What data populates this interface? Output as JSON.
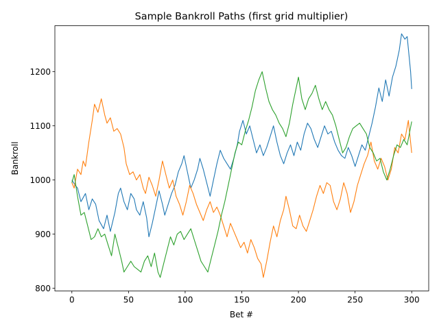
{
  "chart_data": {
    "type": "line",
    "title": "Sample Bankroll Paths (first grid multiplier)",
    "xlabel": "Bet #",
    "ylabel": "Bankroll",
    "xlim": [
      -15,
      315
    ],
    "ylim": [
      795,
      1285
    ],
    "xticks": [
      0,
      50,
      100,
      150,
      200,
      250,
      300
    ],
    "yticks": [
      800,
      900,
      1000,
      1100,
      1200
    ],
    "grid": false,
    "series": [
      {
        "color": "#1f77b4",
        "points": [
          [
            0,
            1000
          ],
          [
            3,
            990
          ],
          [
            5,
            985
          ],
          [
            8,
            960
          ],
          [
            12,
            975
          ],
          [
            15,
            945
          ],
          [
            18,
            965
          ],
          [
            21,
            955
          ],
          [
            24,
            925
          ],
          [
            28,
            910
          ],
          [
            31,
            935
          ],
          [
            34,
            905
          ],
          [
            38,
            940
          ],
          [
            41,
            975
          ],
          [
            43,
            985
          ],
          [
            46,
            960
          ],
          [
            49,
            945
          ],
          [
            52,
            975
          ],
          [
            55,
            965
          ],
          [
            57,
            945
          ],
          [
            60,
            935
          ],
          [
            63,
            960
          ],
          [
            66,
            930
          ],
          [
            68,
            895
          ],
          [
            71,
            920
          ],
          [
            74,
            950
          ],
          [
            77,
            980
          ],
          [
            80,
            955
          ],
          [
            82,
            935
          ],
          [
            85,
            955
          ],
          [
            88,
            975
          ],
          [
            91,
            990
          ],
          [
            94,
            1015
          ],
          [
            97,
            1030
          ],
          [
            99,
            1045
          ],
          [
            102,
            1015
          ],
          [
            105,
            985
          ],
          [
            108,
            1000
          ],
          [
            111,
            1020
          ],
          [
            113,
            1040
          ],
          [
            116,
            1020
          ],
          [
            119,
            995
          ],
          [
            122,
            970
          ],
          [
            125,
            1000
          ],
          [
            128,
            1030
          ],
          [
            131,
            1055
          ],
          [
            134,
            1040
          ],
          [
            137,
            1030
          ],
          [
            140,
            1020
          ],
          [
            143,
            1040
          ],
          [
            146,
            1065
          ],
          [
            148,
            1090
          ],
          [
            151,
            1110
          ],
          [
            154,
            1085
          ],
          [
            157,
            1100
          ],
          [
            160,
            1075
          ],
          [
            163,
            1050
          ],
          [
            166,
            1065
          ],
          [
            169,
            1045
          ],
          [
            172,
            1060
          ],
          [
            175,
            1080
          ],
          [
            178,
            1100
          ],
          [
            181,
            1070
          ],
          [
            184,
            1045
          ],
          [
            187,
            1030
          ],
          [
            190,
            1050
          ],
          [
            193,
            1065
          ],
          [
            196,
            1045
          ],
          [
            199,
            1070
          ],
          [
            202,
            1055
          ],
          [
            205,
            1085
          ],
          [
            208,
            1105
          ],
          [
            211,
            1095
          ],
          [
            214,
            1075
          ],
          [
            217,
            1060
          ],
          [
            220,
            1080
          ],
          [
            223,
            1100
          ],
          [
            226,
            1085
          ],
          [
            229,
            1090
          ],
          [
            232,
            1070
          ],
          [
            235,
            1055
          ],
          [
            238,
            1045
          ],
          [
            241,
            1040
          ],
          [
            244,
            1060
          ],
          [
            247,
            1045
          ],
          [
            250,
            1025
          ],
          [
            253,
            1045
          ],
          [
            256,
            1065
          ],
          [
            259,
            1055
          ],
          [
            262,
            1080
          ],
          [
            265,
            1105
          ],
          [
            268,
            1135
          ],
          [
            271,
            1170
          ],
          [
            274,
            1145
          ],
          [
            277,
            1185
          ],
          [
            280,
            1155
          ],
          [
            283,
            1190
          ],
          [
            286,
            1210
          ],
          [
            289,
            1240
          ],
          [
            291,
            1270
          ],
          [
            294,
            1260
          ],
          [
            296,
            1265
          ],
          [
            299,
            1200
          ],
          [
            300,
            1168
          ]
        ]
      },
      {
        "color": "#ff7f0e",
        "points": [
          [
            0,
            995
          ],
          [
            2,
            985
          ],
          [
            5,
            1020
          ],
          [
            8,
            1010
          ],
          [
            10,
            1035
          ],
          [
            12,
            1025
          ],
          [
            15,
            1070
          ],
          [
            18,
            1110
          ],
          [
            20,
            1140
          ],
          [
            23,
            1125
          ],
          [
            26,
            1150
          ],
          [
            29,
            1120
          ],
          [
            31,
            1105
          ],
          [
            34,
            1115
          ],
          [
            37,
            1090
          ],
          [
            40,
            1095
          ],
          [
            43,
            1085
          ],
          [
            46,
            1060
          ],
          [
            48,
            1030
          ],
          [
            51,
            1010
          ],
          [
            54,
            1015
          ],
          [
            57,
            1000
          ],
          [
            60,
            1010
          ],
          [
            63,
            985
          ],
          [
            65,
            975
          ],
          [
            68,
            1005
          ],
          [
            71,
            990
          ],
          [
            74,
            970
          ],
          [
            77,
            1000
          ],
          [
            80,
            1035
          ],
          [
            83,
            1010
          ],
          [
            86,
            985
          ],
          [
            89,
            1000
          ],
          [
            92,
            970
          ],
          [
            95,
            955
          ],
          [
            98,
            935
          ],
          [
            101,
            960
          ],
          [
            104,
            990
          ],
          [
            107,
            975
          ],
          [
            110,
            955
          ],
          [
            113,
            940
          ],
          [
            116,
            925
          ],
          [
            119,
            945
          ],
          [
            122,
            960
          ],
          [
            125,
            940
          ],
          [
            128,
            950
          ],
          [
            131,
            935
          ],
          [
            134,
            915
          ],
          [
            137,
            895
          ],
          [
            140,
            920
          ],
          [
            143,
            905
          ],
          [
            146,
            890
          ],
          [
            149,
            875
          ],
          [
            152,
            885
          ],
          [
            155,
            865
          ],
          [
            158,
            890
          ],
          [
            161,
            875
          ],
          [
            164,
            855
          ],
          [
            167,
            845
          ],
          [
            169,
            820
          ],
          [
            172,
            850
          ],
          [
            175,
            885
          ],
          [
            178,
            915
          ],
          [
            181,
            895
          ],
          [
            184,
            925
          ],
          [
            187,
            945
          ],
          [
            189,
            970
          ],
          [
            192,
            945
          ],
          [
            195,
            915
          ],
          [
            198,
            910
          ],
          [
            201,
            935
          ],
          [
            204,
            915
          ],
          [
            207,
            905
          ],
          [
            210,
            925
          ],
          [
            213,
            945
          ],
          [
            216,
            970
          ],
          [
            219,
            990
          ],
          [
            222,
            975
          ],
          [
            225,
            995
          ],
          [
            228,
            990
          ],
          [
            231,
            960
          ],
          [
            234,
            945
          ],
          [
            237,
            965
          ],
          [
            240,
            995
          ],
          [
            243,
            975
          ],
          [
            246,
            940
          ],
          [
            249,
            960
          ],
          [
            252,
            990
          ],
          [
            255,
            1010
          ],
          [
            258,
            1030
          ],
          [
            261,
            1045
          ],
          [
            264,
            1070
          ],
          [
            267,
            1035
          ],
          [
            270,
            1020
          ],
          [
            273,
            1040
          ],
          [
            276,
            1025
          ],
          [
            279,
            1000
          ],
          [
            282,
            1020
          ],
          [
            285,
            1060
          ],
          [
            288,
            1050
          ],
          [
            291,
            1085
          ],
          [
            294,
            1075
          ],
          [
            297,
            1110
          ],
          [
            300,
            1050
          ]
        ]
      },
      {
        "color": "#2ca02c",
        "points": [
          [
            0,
            995
          ],
          [
            2,
            1010
          ],
          [
            5,
            970
          ],
          [
            8,
            935
          ],
          [
            11,
            940
          ],
          [
            14,
            915
          ],
          [
            17,
            890
          ],
          [
            20,
            895
          ],
          [
            23,
            910
          ],
          [
            26,
            895
          ],
          [
            29,
            900
          ],
          [
            32,
            880
          ],
          [
            35,
            860
          ],
          [
            38,
            900
          ],
          [
            41,
            875
          ],
          [
            44,
            850
          ],
          [
            46,
            830
          ],
          [
            49,
            840
          ],
          [
            52,
            850
          ],
          [
            55,
            840
          ],
          [
            58,
            835
          ],
          [
            61,
            830
          ],
          [
            64,
            850
          ],
          [
            67,
            860
          ],
          [
            70,
            840
          ],
          [
            73,
            865
          ],
          [
            76,
            830
          ],
          [
            78,
            820
          ],
          [
            81,
            845
          ],
          [
            84,
            870
          ],
          [
            87,
            895
          ],
          [
            90,
            880
          ],
          [
            93,
            900
          ],
          [
            96,
            905
          ],
          [
            99,
            890
          ],
          [
            102,
            900
          ],
          [
            105,
            910
          ],
          [
            108,
            890
          ],
          [
            111,
            870
          ],
          [
            114,
            850
          ],
          [
            117,
            840
          ],
          [
            120,
            830
          ],
          [
            123,
            855
          ],
          [
            126,
            880
          ],
          [
            129,
            905
          ],
          [
            132,
            935
          ],
          [
            135,
            960
          ],
          [
            138,
            990
          ],
          [
            141,
            1020
          ],
          [
            144,
            1050
          ],
          [
            147,
            1070
          ],
          [
            150,
            1065
          ],
          [
            153,
            1090
          ],
          [
            156,
            1110
          ],
          [
            159,
            1135
          ],
          [
            162,
            1165
          ],
          [
            165,
            1185
          ],
          [
            168,
            1200
          ],
          [
            171,
            1170
          ],
          [
            174,
            1145
          ],
          [
            177,
            1130
          ],
          [
            180,
            1120
          ],
          [
            183,
            1105
          ],
          [
            186,
            1095
          ],
          [
            189,
            1080
          ],
          [
            192,
            1105
          ],
          [
            195,
            1140
          ],
          [
            198,
            1170
          ],
          [
            200,
            1190
          ],
          [
            203,
            1150
          ],
          [
            206,
            1130
          ],
          [
            209,
            1150
          ],
          [
            212,
            1160
          ],
          [
            215,
            1175
          ],
          [
            218,
            1150
          ],
          [
            221,
            1130
          ],
          [
            224,
            1145
          ],
          [
            227,
            1130
          ],
          [
            230,
            1120
          ],
          [
            233,
            1100
          ],
          [
            236,
            1075
          ],
          [
            239,
            1050
          ],
          [
            242,
            1060
          ],
          [
            245,
            1080
          ],
          [
            248,
            1095
          ],
          [
            251,
            1100
          ],
          [
            254,
            1105
          ],
          [
            257,
            1095
          ],
          [
            260,
            1085
          ],
          [
            263,
            1060
          ],
          [
            266,
            1050
          ],
          [
            269,
            1035
          ],
          [
            272,
            1040
          ],
          [
            275,
            1015
          ],
          [
            278,
            1000
          ],
          [
            281,
            1020
          ],
          [
            284,
            1045
          ],
          [
            287,
            1065
          ],
          [
            290,
            1060
          ],
          [
            293,
            1075
          ],
          [
            296,
            1065
          ],
          [
            300,
            1108
          ]
        ]
      }
    ]
  }
}
